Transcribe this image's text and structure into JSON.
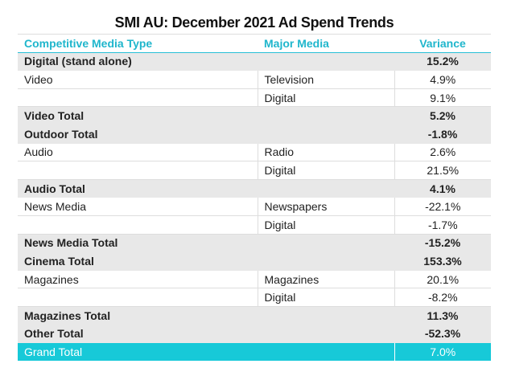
{
  "title": "SMI AU: December 2021 Ad Spend Trends",
  "table": {
    "header": [
      "Competitive Media Type",
      "Major Media",
      "Variance"
    ],
    "rows": [
      [
        "Digital (stand alone)",
        null,
        "15.2%"
      ],
      [
        "Video",
        "Television",
        "4.9%"
      ],
      [
        null,
        "Digital",
        "9.1%"
      ],
      [
        "Video Total",
        null,
        "5.2%"
      ],
      [
        "Outdoor Total",
        null,
        "-1.8%"
      ],
      [
        "Audio",
        "Radio",
        "2.6%"
      ],
      [
        null,
        "Digital",
        "21.5%"
      ],
      [
        "Audio Total",
        null,
        "4.1%"
      ],
      [
        "News Media",
        "Newspapers",
        "-22.1%"
      ],
      [
        null,
        "Digital",
        "-1.7%"
      ],
      [
        "News Media Total",
        null,
        "-15.2%"
      ],
      [
        "Cinema Total",
        null,
        "153.3%"
      ],
      [
        "Magazines",
        "Magazines",
        "20.1%"
      ],
      [
        null,
        "Digital",
        "-8.2%"
      ],
      [
        "Magazines Total",
        null,
        "11.3%"
      ],
      [
        "Other Total",
        null,
        "-52.3%"
      ],
      [
        "Grand Total",
        null,
        "7.0%"
      ]
    ]
  }
}
